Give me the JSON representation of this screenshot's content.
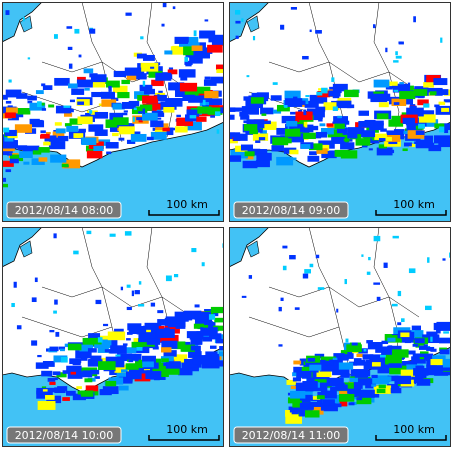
{
  "panels": [
    {
      "timestamp": "2012/08/14 08:00",
      "scale_label": "100 km"
    },
    {
      "timestamp": "2012/08/14 09:00",
      "scale_label": "100 km"
    },
    {
      "timestamp": "2012/08/14 10:00",
      "scale_label": "100 km"
    },
    {
      "timestamp": "2012/08/14 11:00",
      "scale_label": "100 km"
    }
  ]
}
